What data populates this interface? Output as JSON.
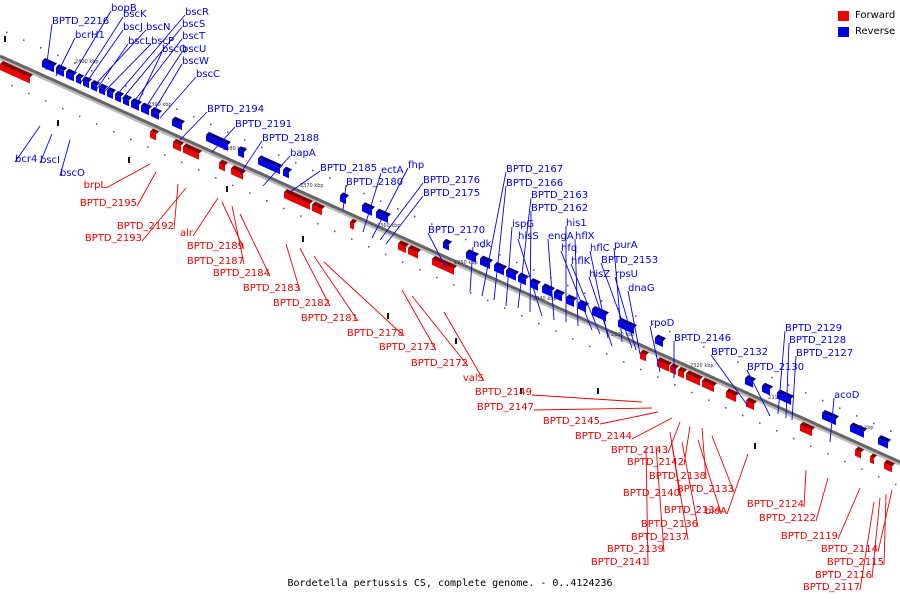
{
  "caption": "Bordetella pertussis CS, complete genome. - 0..4124236",
  "legend": {
    "forward": {
      "label": "Forward",
      "color": "#ee0000"
    },
    "reverse": {
      "label": "Reverse",
      "color": "#0000ee"
    }
  },
  "ticks": [
    "2400 kbp",
    "2390 kbp",
    "2380 kbp",
    "2370 kbp",
    "2360 kbp",
    "2350 kbp",
    "2340 kbp",
    "2330 kbp",
    "2320 kbp",
    "2310 kbp",
    "2300 kbp"
  ],
  "reverse_genes": [
    "BPTD_2216",
    "bcrH1",
    "bopB",
    "bscK",
    "bscJ",
    "bscN",
    "bscL",
    "bscP",
    "bscR",
    "bscS",
    "bscT",
    "bscQ",
    "bscU",
    "bscW",
    "bscC",
    "BPTD_2194",
    "BPTD_2191",
    "BPTD_2188",
    "bapA",
    "BPTD_2185",
    "BPTD_2180",
    "ectA",
    "fhp",
    "BPTD_2176",
    "BPTD_2175",
    "BPTD_2170",
    "ndk",
    "BPTD_2167",
    "BPTD_2166",
    "ispG",
    "BPTD_2163",
    "BPTD_2162",
    "hisS",
    "engA",
    "his1",
    "hflX",
    "hfq",
    "hflK",
    "hflC",
    "purA",
    "hisZ",
    "BPTD_2153",
    "rpsU",
    "dnaG",
    "rpoD",
    "BPTD_2146",
    "BPTD_2132",
    "BPTD_2130",
    "BPTD_2129",
    "BPTD_2128",
    "BPTD_2127",
    "acoD",
    "bcr4",
    "bscI",
    "bscO"
  ],
  "forward_genes": [
    "brpL",
    "BPTD_2195",
    "BPTD_2192",
    "BPTD_2193",
    "alr",
    "BPTD_2189",
    "BPTD_2187",
    "BPTD_2184",
    "BPTD_2183",
    "BPTD_2182",
    "BPTD_2181",
    "BPTD_2178",
    "BPTD_2173",
    "BPTD_2172",
    "valS",
    "BPTD_2149",
    "BPTD_2147",
    "BPTD_2145",
    "BPTD_2144",
    "BPTD_2143",
    "BPTD_2142",
    "BPTD_2138",
    "BPTD_2140",
    "BPTD_2133",
    "BPTD_2134",
    "BPTD_2136",
    "BPTD_2137",
    "BPTD_2139",
    "BPTD_2141",
    "bioA",
    "BPTD_2124",
    "BPTD_2122",
    "BPTD_2119",
    "BPTD_2114",
    "BPTD_2115",
    "BPTD_2116",
    "BPTD_2117"
  ]
}
